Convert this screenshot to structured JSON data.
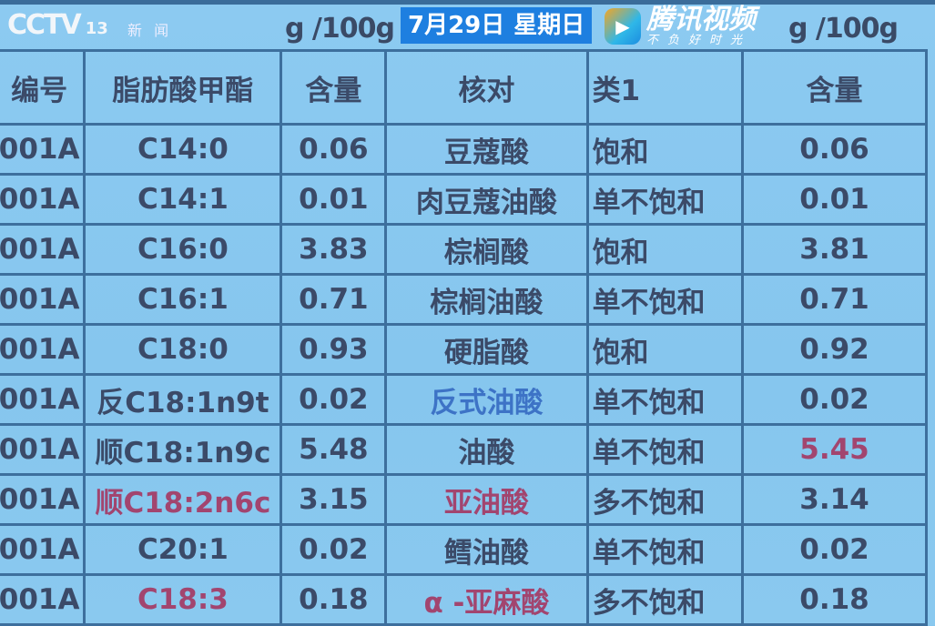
{
  "units": [
    "g /100g",
    "g /100g"
  ],
  "headers": [
    "编号",
    "脂肪酸甲酯",
    "含量",
    "核对",
    "类1",
    "含量"
  ],
  "rows": [
    [
      "001A",
      "C14:0",
      "0.06",
      "豆蔻酸",
      "饱和",
      "0.06"
    ],
    [
      "001A",
      "C14:1",
      "0.01",
      "肉豆蔻油酸",
      "单不饱和",
      "0.01"
    ],
    [
      "001A",
      "C16:0",
      "3.83",
      "棕榈酸",
      "饱和",
      "3.81"
    ],
    [
      "001A",
      "C16:1",
      "0.71",
      "棕榈油酸",
      "单不饱和",
      "0.71"
    ],
    [
      "001A",
      "C18:0",
      "0.93",
      "硬脂酸",
      "饱和",
      "0.92"
    ],
    [
      "001A",
      "反C18:1n9t",
      "0.02",
      "反式油酸",
      "单不饱和",
      "0.02"
    ],
    [
      "001A",
      "顺C18:1n9c",
      "5.48",
      "油酸",
      "单不饱和",
      "5.45"
    ],
    [
      "001A",
      "顺C18:2n6c",
      "3.15",
      "亚油酸",
      "多不饱和",
      "3.14"
    ],
    [
      "001A",
      "C20:1",
      "0.02",
      "鳕油酸",
      "单不饱和",
      "0.02"
    ],
    [
      "001A",
      "C18:3",
      "0.18",
      "α -亚麻酸",
      "多不饱和",
      "0.18"
    ]
  ],
  "overlay": {
    "channel": "CCTV",
    "channel_number": "13",
    "channel_sub": "新 闻",
    "video_brand": "腾讯视频",
    "video_slogan": "不负好时光",
    "date": "7月29日",
    "weekday": "星期日"
  },
  "colors": {
    "background": "#86c6ee",
    "grid": "#3d6f9d",
    "text": "#3b4a68",
    "highlight_blue": "#3d73c6",
    "highlight_red": "#a2456f"
  }
}
